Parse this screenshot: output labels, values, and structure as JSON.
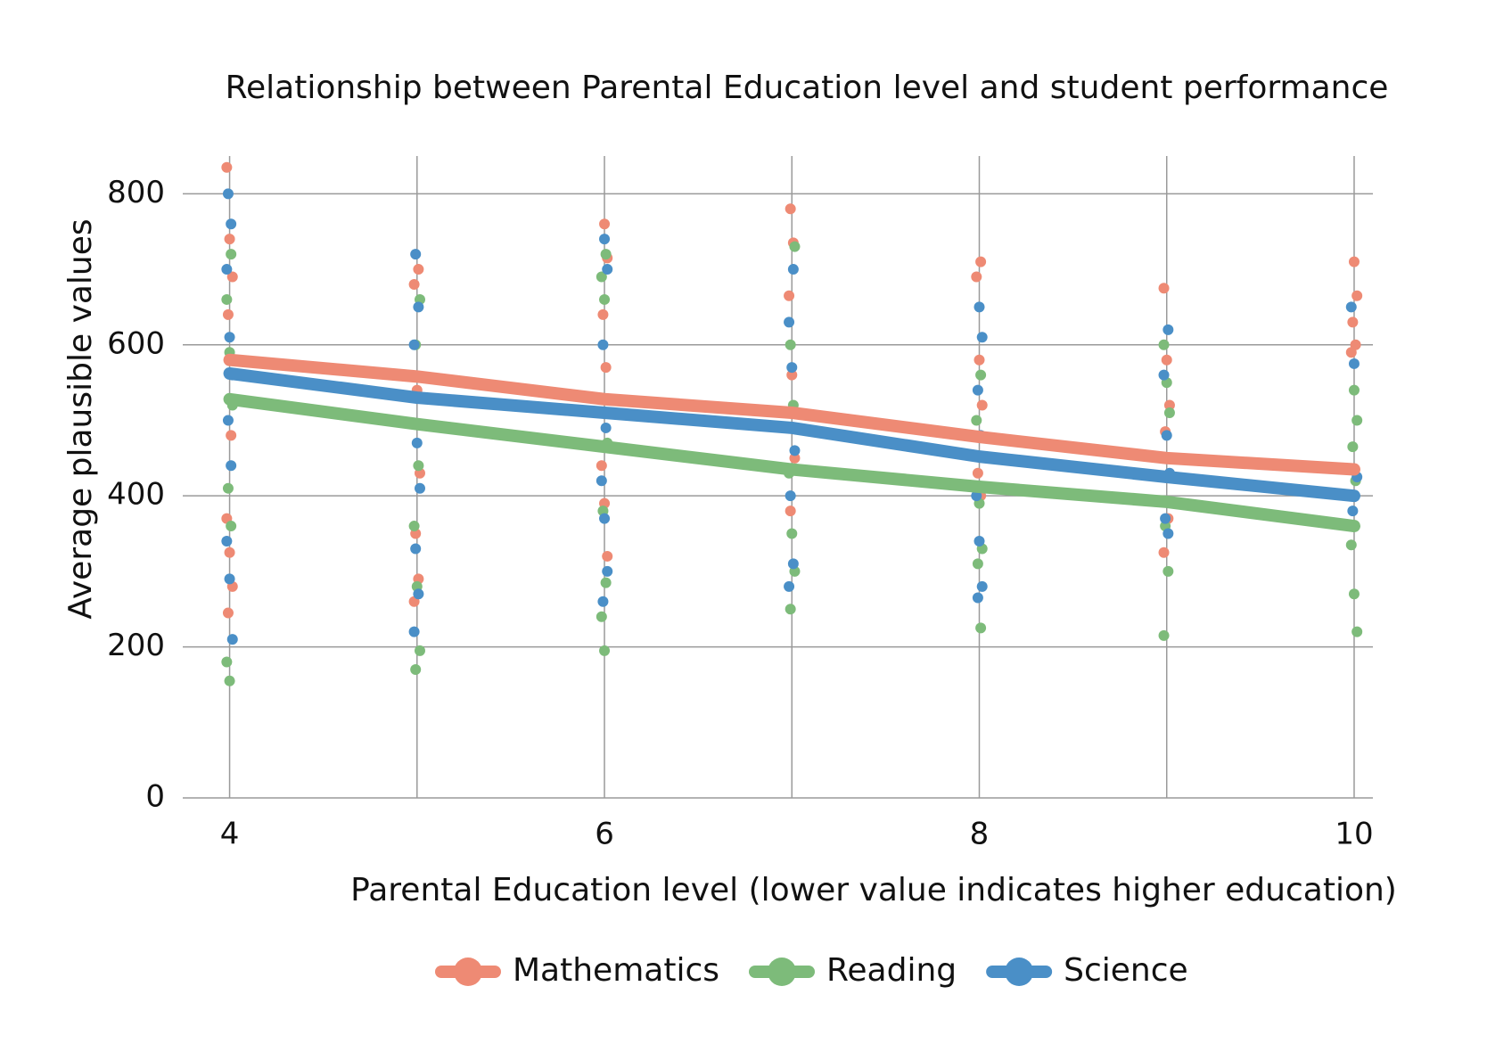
{
  "chart_data": {
    "type": "scatter",
    "title": "Relationship between Parental Education level and student performance",
    "x_label": "Parental Education level (lower value indicates higher education)",
    "y_label": "Average plausible values",
    "xlim": [
      3.75,
      10.1
    ],
    "ylim": [
      0,
      850
    ],
    "xticks": [
      4,
      6,
      8,
      10
    ],
    "yticks": [
      0,
      200,
      400,
      600,
      800
    ],
    "grid": true,
    "series": [
      {
        "name": "Mathematics",
        "color": "#ee8a74",
        "x": [
          4,
          4,
          4,
          4,
          4,
          4,
          4,
          4,
          4,
          5,
          5,
          5,
          5,
          5,
          5,
          5,
          6,
          6,
          6,
          6,
          6,
          6,
          6,
          7,
          7,
          7,
          7,
          7,
          7,
          8,
          8,
          8,
          8,
          8,
          8,
          9,
          9,
          9,
          9,
          9,
          9,
          10,
          10,
          10,
          10,
          10
        ],
        "values": [
          835,
          740,
          690,
          640,
          480,
          370,
          325,
          280,
          245,
          700,
          680,
          540,
          430,
          350,
          290,
          260,
          760,
          715,
          640,
          570,
          440,
          390,
          320,
          780,
          735,
          665,
          560,
          450,
          380,
          710,
          690,
          580,
          520,
          430,
          400,
          675,
          580,
          520,
          485,
          370,
          325,
          710,
          665,
          630,
          600,
          590
        ],
        "line": {
          "x": [
            4,
            5,
            6,
            7,
            8,
            9,
            10
          ],
          "values": [
            580,
            558,
            528,
            510,
            478,
            450,
            435
          ]
        }
      },
      {
        "name": "Reading",
        "color": "#7dbb7a",
        "x": [
          4,
          4,
          4,
          4,
          4,
          4,
          4,
          4,
          5,
          5,
          5,
          5,
          5,
          5,
          5,
          6,
          6,
          6,
          6,
          6,
          6,
          6,
          6,
          7,
          7,
          7,
          7,
          7,
          7,
          7,
          8,
          8,
          8,
          8,
          8,
          8,
          9,
          9,
          9,
          9,
          9,
          9,
          10,
          10,
          10,
          10,
          10,
          10,
          10
        ],
        "values": [
          720,
          660,
          590,
          520,
          410,
          360,
          180,
          155,
          660,
          600,
          440,
          360,
          280,
          195,
          170,
          720,
          690,
          660,
          470,
          380,
          285,
          240,
          195,
          730,
          600,
          520,
          430,
          350,
          300,
          250,
          560,
          500,
          390,
          330,
          310,
          225,
          600,
          550,
          510,
          360,
          300,
          215,
          540,
          500,
          465,
          420,
          335,
          270,
          220
        ],
        "line": {
          "x": [
            4,
            5,
            6,
            7,
            8,
            9,
            10
          ],
          "values": [
            528,
            495,
            465,
            435,
            412,
            392,
            360
          ]
        }
      },
      {
        "name": "Science",
        "color": "#4a8fc7",
        "x": [
          4,
          4,
          4,
          4,
          4,
          4,
          4,
          4,
          4,
          4,
          5,
          5,
          5,
          5,
          5,
          5,
          5,
          5,
          6,
          6,
          6,
          6,
          6,
          6,
          6,
          6,
          7,
          7,
          7,
          7,
          7,
          7,
          7,
          8,
          8,
          8,
          8,
          8,
          8,
          8,
          8,
          9,
          9,
          9,
          9,
          9,
          9,
          10,
          10,
          10,
          10
        ],
        "values": [
          800,
          760,
          700,
          610,
          560,
          500,
          440,
          340,
          290,
          210,
          720,
          650,
          600,
          470,
          410,
          330,
          270,
          220,
          740,
          700,
          600,
          490,
          420,
          370,
          300,
          260,
          700,
          630,
          570,
          460,
          400,
          310,
          280,
          650,
          610,
          540,
          480,
          400,
          340,
          280,
          265,
          620,
          560,
          480,
          430,
          370,
          350,
          650,
          575,
          425,
          380
        ],
        "line": {
          "x": [
            4,
            5,
            6,
            7,
            8,
            9,
            10
          ],
          "values": [
            562,
            530,
            510,
            490,
            452,
            425,
            400
          ]
        }
      }
    ]
  }
}
